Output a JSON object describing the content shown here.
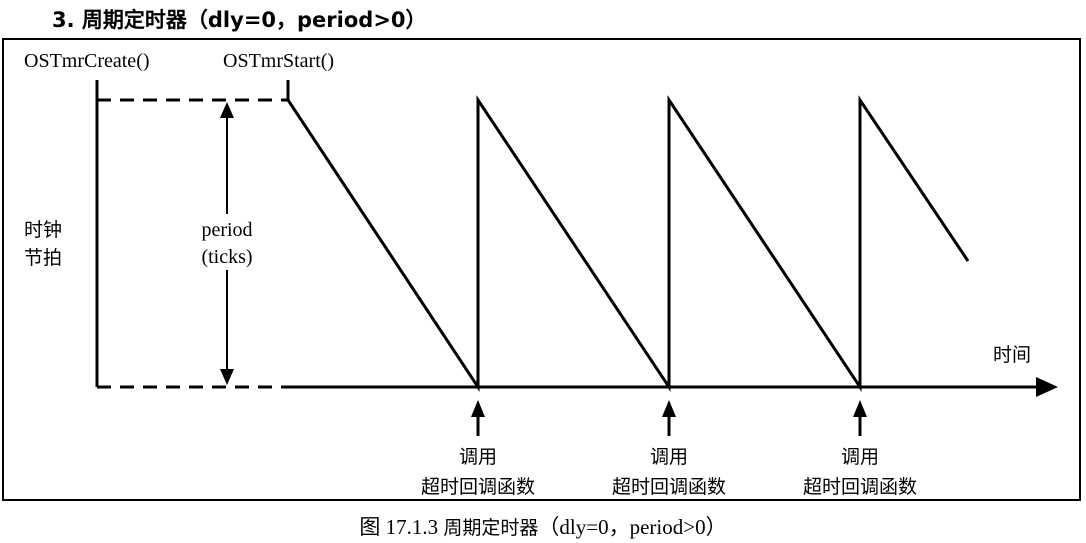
{
  "heading": "3. 周期定时器（dly=0，period>0）",
  "labels": {
    "create_call": "OSTmrCreate()",
    "start_call": "OSTmrStart()",
    "y_axis_line1": "时钟",
    "y_axis_line2": "节拍",
    "period_line1": "period",
    "period_line2": "(ticks)",
    "x_axis": "时间"
  },
  "callbacks": [
    {
      "line1": "调用",
      "line2": "超时回调函数"
    },
    {
      "line1": "调用",
      "line2": "超时回调函数"
    },
    {
      "line1": "调用",
      "line2": "超时回调函数"
    }
  ],
  "caption": {
    "prefix": "图 17.1.3 ",
    "title": "周期定时器",
    "params": "（dly=0，period>0）"
  }
}
